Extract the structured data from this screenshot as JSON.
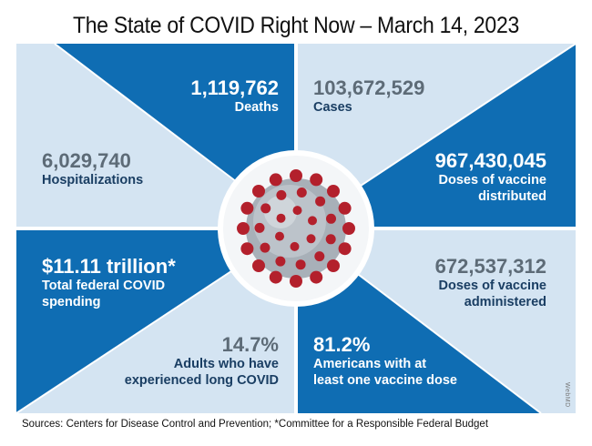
{
  "title": "The State of COVID Right Now – March 14, 2023",
  "colors": {
    "dark": "#0f6db3",
    "light": "#d4e4f2",
    "spike": "#b3202c",
    "virus": "#a8b0b8"
  },
  "stats": {
    "deaths": {
      "value": "1,119,762",
      "label": "Deaths"
    },
    "cases": {
      "value": "103,672,529",
      "label": "Cases"
    },
    "hospitalizations": {
      "value": "6,029,740",
      "label": "Hospitalizations"
    },
    "distributed": {
      "value": "967,430,045",
      "label1": "Doses of vaccine",
      "label2": "distributed"
    },
    "spending": {
      "value": "$11.11 trillion*",
      "label1": "Total federal COVID",
      "label2": "spending"
    },
    "administered": {
      "value": "672,537,312",
      "label1": "Doses of vaccine",
      "label2": "administered"
    },
    "long_covid": {
      "value": "14.7%",
      "label1": "Adults who have",
      "label2": "experienced long COVID"
    },
    "one_dose": {
      "value": "81.2%",
      "label1": "Americans with at",
      "label2": "least one vaccine dose"
    }
  },
  "watermark": "WebMD",
  "sources": {
    "prefix": "Sources:",
    "text": " Centers for Disease Control and Prevention; *Committee for a Responsible Federal Budget"
  },
  "center_icon": "coronavirus-icon"
}
